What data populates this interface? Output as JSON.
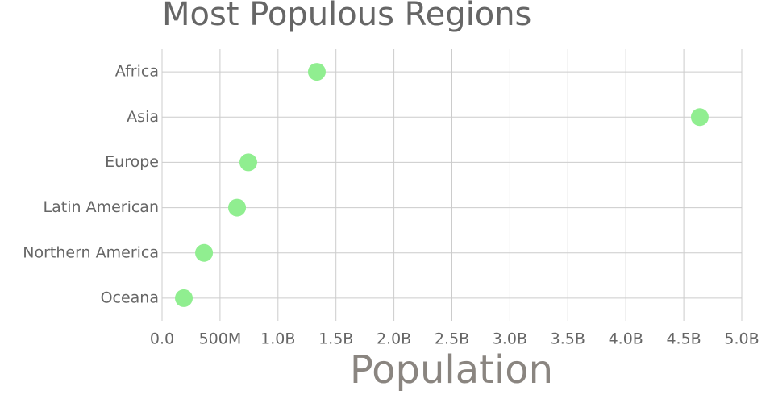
{
  "chart_data": {
    "type": "dot",
    "title": "Most Populous Regions",
    "x_label": "Population",
    "categories": [
      "Africa",
      "Asia",
      "Europe",
      "Latin American",
      "Northern America",
      "Oceana"
    ],
    "values": [
      1335000000,
      4638000000,
      744000000,
      647000000,
      362000000,
      188000000
    ],
    "color": "#90ee90",
    "xlim": [
      0,
      5000000000
    ],
    "xticks": [
      {
        "value": 0,
        "label": "0.0"
      },
      {
        "value": 500000000,
        "label": "500M"
      },
      {
        "value": 1000000000,
        "label": "1.0B"
      },
      {
        "value": 1500000000,
        "label": "1.5B"
      },
      {
        "value": 2000000000,
        "label": "2.0B"
      },
      {
        "value": 2500000000,
        "label": "2.5B"
      },
      {
        "value": 3000000000,
        "label": "3.0B"
      },
      {
        "value": 3500000000,
        "label": "3.5B"
      },
      {
        "value": 4000000000,
        "label": "4.0B"
      },
      {
        "value": 4500000000,
        "label": "4.5B"
      },
      {
        "value": 5000000000,
        "label": "5.0B"
      }
    ],
    "grid": true
  }
}
